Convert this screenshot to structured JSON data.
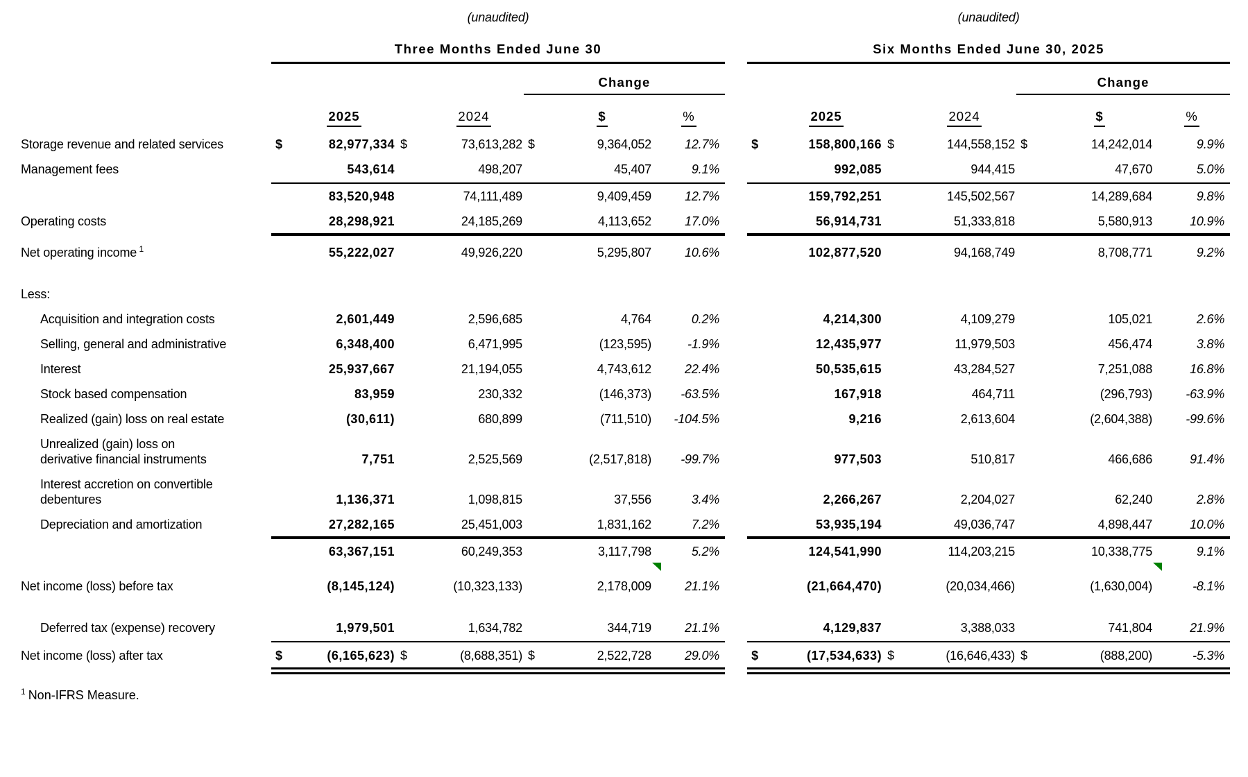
{
  "report": {
    "sections": [
      {
        "unaudited": "(unaudited)",
        "title": "Three Months Ended June 30"
      },
      {
        "unaudited": "(unaudited)",
        "title": "Six Months Ended June 30, 2025"
      }
    ],
    "change_label": "Change",
    "col_headers": {
      "y2025": "2025",
      "y2024": "2024",
      "dollar": "$",
      "percent": "%"
    },
    "currency_symbol": "$",
    "flag_color": "#008000",
    "footnote": {
      "sup": "1",
      "text": "Non-IFRS Measure."
    },
    "rows": [
      {
        "type": "data",
        "label": "Storage revenue and related services",
        "indent": false,
        "dollar": true,
        "sup": "",
        "flag": false,
        "tm": {
          "y2025": "82,977,334",
          "y2024": "73,613,282",
          "chg": "9,364,052",
          "pct": "12.7%"
        },
        "sm": {
          "y2025": "158,800,166",
          "y2024": "144,558,152",
          "chg": "14,242,014",
          "pct": "9.9%"
        }
      },
      {
        "type": "data",
        "label": "Management fees",
        "indent": false,
        "dollar": false,
        "sup": "",
        "flag": false,
        "tm": {
          "y2025": "543,614",
          "y2024": "498,207",
          "chg": "45,407",
          "pct": "9.1%"
        },
        "sm": {
          "y2025": "992,085",
          "y2024": "944,415",
          "chg": "47,670",
          "pct": "5.0%"
        }
      },
      {
        "type": "rule",
        "style": "single"
      },
      {
        "type": "data",
        "label": "",
        "indent": false,
        "dollar": false,
        "sup": "",
        "flag": false,
        "tm": {
          "y2025": "83,520,948",
          "y2024": "74,111,489",
          "chg": "9,409,459",
          "pct": "12.7%"
        },
        "sm": {
          "y2025": "159,792,251",
          "y2024": "145,502,567",
          "chg": "14,289,684",
          "pct": "9.8%"
        }
      },
      {
        "type": "data",
        "label": "Operating costs",
        "indent": false,
        "dollar": false,
        "sup": "",
        "flag": false,
        "tm": {
          "y2025": "28,298,921",
          "y2024": "24,185,269",
          "chg": "4,113,652",
          "pct": "17.0%"
        },
        "sm": {
          "y2025": "56,914,731",
          "y2024": "51,333,818",
          "chg": "5,580,913",
          "pct": "10.9%"
        }
      },
      {
        "type": "rule",
        "style": "thick"
      },
      {
        "type": "data",
        "label": "Net operating income",
        "indent": false,
        "dollar": false,
        "sup": "1",
        "flag": false,
        "tm": {
          "y2025": "55,222,027",
          "y2024": "49,926,220",
          "chg": "5,295,807",
          "pct": "10.6%"
        },
        "sm": {
          "y2025": "102,877,520",
          "y2024": "94,168,749",
          "chg": "8,708,771",
          "pct": "9.2%"
        }
      },
      {
        "type": "spacer",
        "h": 24
      },
      {
        "type": "label",
        "label": "Less:"
      },
      {
        "type": "data",
        "label": "Acquisition and integration costs",
        "indent": true,
        "dollar": false,
        "sup": "",
        "flag": false,
        "tm": {
          "y2025": "2,601,449",
          "y2024": "2,596,685",
          "chg": "4,764",
          "pct": "0.2%"
        },
        "sm": {
          "y2025": "4,214,300",
          "y2024": "4,109,279",
          "chg": "105,021",
          "pct": "2.6%"
        }
      },
      {
        "type": "data",
        "label": "Selling, general and administrative",
        "indent": true,
        "dollar": false,
        "sup": "",
        "flag": false,
        "tm": {
          "y2025": "6,348,400",
          "y2024": "6,471,995",
          "chg": "(123,595)",
          "pct": "-1.9%"
        },
        "sm": {
          "y2025": "12,435,977",
          "y2024": "11,979,503",
          "chg": "456,474",
          "pct": "3.8%"
        }
      },
      {
        "type": "data",
        "label": "Interest",
        "indent": true,
        "dollar": false,
        "sup": "",
        "flag": false,
        "tm": {
          "y2025": "25,937,667",
          "y2024": "21,194,055",
          "chg": "4,743,612",
          "pct": "22.4%"
        },
        "sm": {
          "y2025": "50,535,615",
          "y2024": "43,284,527",
          "chg": "7,251,088",
          "pct": "16.8%"
        }
      },
      {
        "type": "data",
        "label": "Stock based compensation",
        "indent": true,
        "dollar": false,
        "sup": "",
        "flag": false,
        "tm": {
          "y2025": "83,959",
          "y2024": "230,332",
          "chg": "(146,373)",
          "pct": "-63.5%"
        },
        "sm": {
          "y2025": "167,918",
          "y2024": "464,711",
          "chg": "(296,793)",
          "pct": "-63.9%"
        }
      },
      {
        "type": "data",
        "label": "Realized (gain) loss on real estate",
        "indent": true,
        "dollar": false,
        "sup": "",
        "flag": false,
        "tm": {
          "y2025": "(30,611)",
          "y2024": "680,899",
          "chg": "(711,510)",
          "pct": "-104.5%"
        },
        "sm": {
          "y2025": "9,216",
          "y2024": "2,613,604",
          "chg": "(2,604,388)",
          "pct": "-99.6%"
        }
      },
      {
        "type": "data",
        "label": "Unrealized (gain) loss on\nderivative financial instruments",
        "indent": true,
        "dollar": false,
        "sup": "",
        "flag": false,
        "tm": {
          "y2025": "7,751",
          "y2024": "2,525,569",
          "chg": "(2,517,818)",
          "pct": "-99.7%"
        },
        "sm": {
          "y2025": "977,503",
          "y2024": "510,817",
          "chg": "466,686",
          "pct": "91.4%"
        }
      },
      {
        "type": "data",
        "label": "Interest accretion on convertible\ndebentures",
        "indent": true,
        "dollar": false,
        "sup": "",
        "flag": false,
        "tm": {
          "y2025": "1,136,371",
          "y2024": "1,098,815",
          "chg": "37,556",
          "pct": "3.4%"
        },
        "sm": {
          "y2025": "2,266,267",
          "y2024": "2,204,027",
          "chg": "62,240",
          "pct": "2.8%"
        }
      },
      {
        "type": "data",
        "label": "Depreciation and amortization",
        "indent": true,
        "dollar": false,
        "sup": "",
        "flag": false,
        "tm": {
          "y2025": "27,282,165",
          "y2024": "25,451,003",
          "chg": "1,831,162",
          "pct": "7.2%"
        },
        "sm": {
          "y2025": "53,935,194",
          "y2024": "49,036,747",
          "chg": "4,898,447",
          "pct": "10.0%"
        }
      },
      {
        "type": "rule",
        "style": "thick"
      },
      {
        "type": "data",
        "label": "",
        "indent": false,
        "dollar": false,
        "sup": "",
        "flag": false,
        "tm": {
          "y2025": "63,367,151",
          "y2024": "60,249,353",
          "chg": "3,117,798",
          "pct": "5.2%"
        },
        "sm": {
          "y2025": "124,541,990",
          "y2024": "114,203,215",
          "chg": "10,338,775",
          "pct": "9.1%"
        }
      },
      {
        "type": "spacer",
        "h": 14
      },
      {
        "type": "data",
        "label": "Net income (loss) before tax",
        "indent": false,
        "dollar": false,
        "sup": "",
        "flag": true,
        "tm": {
          "y2025": "(8,145,124)",
          "y2024": "(10,323,133)",
          "chg": "2,178,009",
          "pct": "21.1%"
        },
        "sm": {
          "y2025": "(21,664,470)",
          "y2024": "(20,034,466)",
          "chg": "(1,630,004)",
          "pct": "-8.1%"
        }
      },
      {
        "type": "spacer",
        "h": 24
      },
      {
        "type": "data",
        "label": "Deferred tax (expense) recovery",
        "indent": true,
        "dollar": false,
        "sup": "",
        "flag": false,
        "tm": {
          "y2025": "1,979,501",
          "y2024": "1,634,782",
          "chg": "344,719",
          "pct": "21.1%"
        },
        "sm": {
          "y2025": "4,129,837",
          "y2024": "3,388,033",
          "chg": "741,804",
          "pct": "21.9%"
        }
      },
      {
        "type": "rule",
        "style": "single"
      },
      {
        "type": "data",
        "label": "Net income (loss) after tax",
        "indent": false,
        "dollar": true,
        "sup": "",
        "flag": false,
        "tm": {
          "y2025": "(6,165,623)",
          "y2024": "(8,688,351)",
          "chg": "2,522,728",
          "pct": "29.0%"
        },
        "sm": {
          "y2025": "(17,534,633)",
          "y2024": "(16,646,433)",
          "chg": "(888,200)",
          "pct": "-5.3%"
        }
      },
      {
        "type": "rule",
        "style": "double"
      }
    ]
  }
}
